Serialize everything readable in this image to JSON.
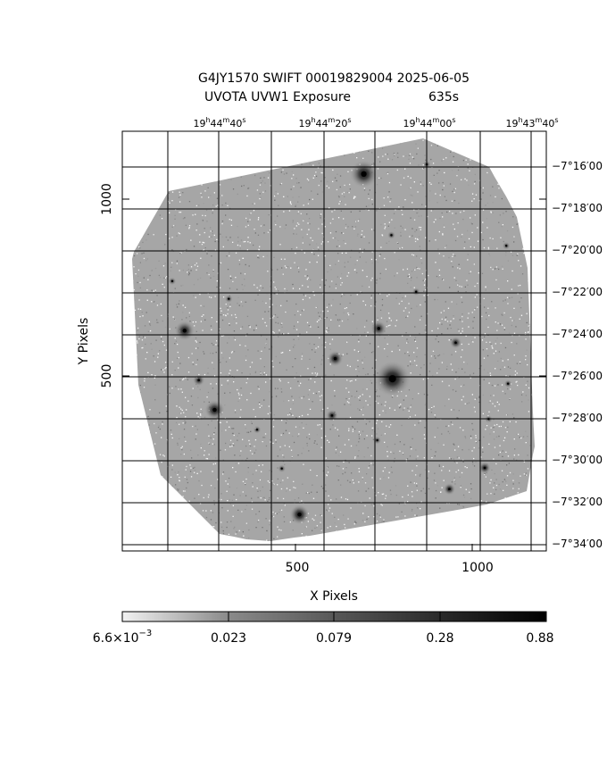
{
  "header": {
    "title_line1": "G4JY1570 SWIFT 00019829004 2025-06-05",
    "title_line2_label": "UVOTA UVW1 Exposure",
    "title_line2_value": "635s"
  },
  "axes": {
    "xlabel": "X Pixels",
    "ylabel": "Y Pixels",
    "x_ticks": [
      "500",
      "1000"
    ],
    "y_ticks": [
      "500",
      "1000"
    ],
    "top_ra_ticks": [
      {
        "h": "19",
        "m": "44",
        "s": "40"
      },
      {
        "h": "19",
        "m": "44",
        "s": "20"
      },
      {
        "h": "19",
        "m": "44",
        "s": "00"
      },
      {
        "h": "19",
        "m": "43",
        "s": "40"
      }
    ],
    "right_dec_ticks": [
      "−7°16′00",
      "−7°18′00",
      "−7°20′00",
      "−7°22′00",
      "−7°24′00",
      "−7°26′00",
      "−7°28′00",
      "−7°30′00",
      "−7°32′00",
      "−7°34′00"
    ]
  },
  "colorbar": {
    "labels": [
      "6.6×10⁻³",
      "0.023",
      "0.079",
      "0.28",
      "0.88"
    ],
    "first_label_mantissa": "6.6×10",
    "first_label_exp": "−3"
  },
  "image": {
    "field_color": "#a6a6a6",
    "sources": [
      {
        "x": 480,
        "y": 1160,
        "r": 10,
        "v": 0.95
      },
      {
        "x": 682,
        "y": 1053,
        "r": 7,
        "v": 0.9
      },
      {
        "x": 763,
        "y": 474,
        "r": 9,
        "v": 0.95
      },
      {
        "x": 601,
        "y": 531,
        "r": 4,
        "v": 0.85
      },
      {
        "x": 500,
        "y": 90,
        "r": 5,
        "v": 0.9
      },
      {
        "x": 175,
        "y": 610,
        "r": 5,
        "v": 0.85
      },
      {
        "x": 260,
        "y": 386,
        "r": 5,
        "v": 0.85
      },
      {
        "x": 724,
        "y": 616,
        "r": 4,
        "v": 0.75
      },
      {
        "x": 592,
        "y": 370,
        "r": 3,
        "v": 0.75
      },
      {
        "x": 942,
        "y": 576,
        "r": 3,
        "v": 0.75
      },
      {
        "x": 1024,
        "y": 222,
        "r": 3,
        "v": 0.8
      },
      {
        "x": 924,
        "y": 162,
        "r": 3,
        "v": 0.8
      },
      {
        "x": 300,
        "y": 1100,
        "r": 2,
        "v": 0.6
      },
      {
        "x": 215,
        "y": 470,
        "r": 3,
        "v": 0.7
      },
      {
        "x": 1090,
        "y": 460,
        "r": 2,
        "v": 0.6
      },
      {
        "x": 140,
        "y": 750,
        "r": 2,
        "v": 0.55
      },
      {
        "x": 1085,
        "y": 850,
        "r": 2,
        "v": 0.55
      },
      {
        "x": 860,
        "y": 1080,
        "r": 2,
        "v": 0.55
      },
      {
        "x": 380,
        "y": 330,
        "r": 2,
        "v": 0.6
      },
      {
        "x": 450,
        "y": 220,
        "r": 2,
        "v": 0.55
      },
      {
        "x": 720,
        "y": 300,
        "r": 2,
        "v": 0.6
      },
      {
        "x": 1160,
        "y": 700,
        "r": 2,
        "v": 0.55
      },
      {
        "x": 300,
        "y": 700,
        "r": 2,
        "v": 0.55
      },
      {
        "x": 830,
        "y": 720,
        "r": 2,
        "v": 0.55
      },
      {
        "x": 1035,
        "y": 360,
        "r": 2,
        "v": 0.55
      },
      {
        "x": 760,
        "y": 880,
        "r": 2,
        "v": 0.6
      }
    ]
  }
}
